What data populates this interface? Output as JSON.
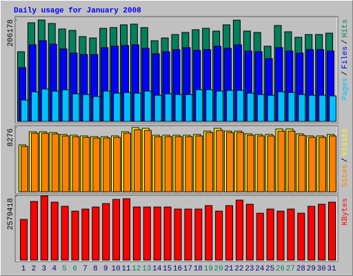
{
  "chart_data": [
    {
      "type": "bar",
      "title": "Daily usage for January 2008",
      "ylim": [
        0,
        206178
      ],
      "yticks": [
        206178
      ],
      "legend_separator": "/",
      "series": [
        {
          "name": "Hits",
          "color": "#00805c",
          "values": [
            141700,
            200600,
            206178,
            199200,
            187900,
            185100,
            172500,
            169700,
            189300,
            190800,
            196400,
            197800,
            190800,
            164100,
            169700,
            176700,
            180900,
            186500,
            189300,
            183700,
            196400,
            205900,
            183700,
            180900,
            152900,
            195000,
            182300,
            171100,
            176700,
            176700,
            179500
          ]
        },
        {
          "name": "Files",
          "color": "#0000ff",
          "values": [
            109400,
            155700,
            164100,
            157100,
            147300,
            138900,
            136100,
            136100,
            150100,
            152900,
            154300,
            155700,
            148700,
            137500,
            141700,
            145900,
            150100,
            144500,
            145900,
            152900,
            148700,
            155700,
            143100,
            141700,
            127600,
            150100,
            143100,
            138900,
            145900,
            145900,
            143100
          ]
        },
        {
          "name": "Pages",
          "color": "#00c0ff",
          "values": [
            43500,
            60300,
            65900,
            61700,
            64500,
            56100,
            54700,
            50500,
            61700,
            57500,
            58900,
            57500,
            61700,
            53300,
            56100,
            54700,
            54700,
            64500,
            64500,
            61700,
            63100,
            63100,
            57500,
            54700,
            53300,
            60300,
            58900,
            54700,
            53300,
            53300,
            51900
          ]
        }
      ]
    },
    {
      "type": "bar",
      "ylim": [
        0,
        8276
      ],
      "yticks": [
        8276
      ],
      "legend_separator": "/",
      "series": [
        {
          "name": "Visits",
          "color": "#ffff00",
          "values": [
            6050,
            7740,
            7740,
            7650,
            7390,
            7300,
            7210,
            7120,
            7120,
            7210,
            7740,
            8276,
            8190,
            7300,
            7300,
            7300,
            7300,
            7390,
            7830,
            8190,
            7830,
            7830,
            7480,
            7390,
            7390,
            8100,
            8100,
            7480,
            7210,
            7210,
            7390
          ]
        },
        {
          "name": "Sites",
          "color": "#ff8000",
          "values": [
            5870,
            7560,
            7560,
            7470,
            7210,
            7120,
            7030,
            6940,
            6940,
            7030,
            7560,
            8010,
            7920,
            7120,
            7120,
            7120,
            7120,
            7210,
            7650,
            7920,
            7650,
            7650,
            7300,
            7210,
            7210,
            7830,
            7830,
            7300,
            7030,
            7030,
            7210
          ]
        }
      ]
    },
    {
      "type": "bar",
      "ylim": [
        0,
        2579418
      ],
      "yticks": [
        2579418
      ],
      "categories": [
        "1",
        "2",
        "3",
        "4",
        "5",
        "6",
        "7",
        "8",
        "9",
        "10",
        "11",
        "12",
        "13",
        "14",
        "15",
        "16",
        "17",
        "18",
        "19",
        "20",
        "21",
        "22",
        "23",
        "24",
        "25",
        "26",
        "27",
        "28",
        "29",
        "30",
        "31"
      ],
      "category_colors": [
        "#000080",
        "#000080",
        "#000080",
        "#000080",
        "#00805c",
        "#00805c",
        "#000080",
        "#000080",
        "#000080",
        "#000080",
        "#000080",
        "#00805c",
        "#00805c",
        "#000080",
        "#000080",
        "#000080",
        "#000080",
        "#000080",
        "#00805c",
        "#00805c",
        "#000080",
        "#000080",
        "#000080",
        "#000080",
        "#000080",
        "#00805c",
        "#00805c",
        "#000080",
        "#000080",
        "#000080",
        "#000080"
      ],
      "series": [
        {
          "name": "KBytes",
          "color": "#ff0000",
          "values": [
            1636400,
            2357600,
            2579418,
            2329800,
            2163400,
            1969300,
            2052500,
            2135700,
            2274400,
            2440800,
            2468500,
            2135700,
            2135700,
            2135700,
            2135700,
            2052500,
            2052500,
            2052500,
            2191100,
            1969300,
            2191100,
            2413000,
            2246600,
            1886000,
            2052500,
            1969300,
            2052500,
            1886000,
            2163400,
            2246600,
            2329800
          ]
        }
      ]
    }
  ]
}
